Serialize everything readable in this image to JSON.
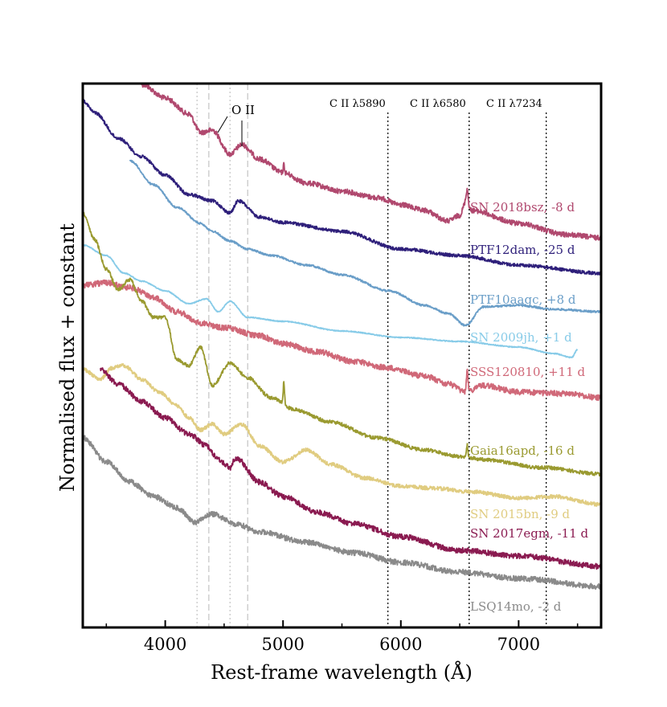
{
  "chart_data": {
    "type": "line",
    "xlabel": "Rest-frame wavelength (Å)",
    "ylabel": "Normalised flux + constant",
    "xlim": [
      3300,
      7700
    ],
    "xticks": [
      4000,
      5000,
      6000,
      7000
    ],
    "yticks_shown": false,
    "grid": false,
    "vertical_lines": [
      {
        "x": 4270,
        "style": "dotted",
        "color": "#c8c8c8"
      },
      {
        "x": 4370,
        "style": "dashed",
        "color": "#c8c8c8"
      },
      {
        "x": 4550,
        "style": "dotted",
        "color": "#c8c8c8"
      },
      {
        "x": 4700,
        "style": "dashed",
        "color": "#c8c8c8"
      },
      {
        "x": 5890,
        "style": "dotted",
        "color": "#000000",
        "label": "C II λ5890"
      },
      {
        "x": 6580,
        "style": "dotted",
        "color": "#000000",
        "label": "C II λ6580"
      },
      {
        "x": 7234,
        "style": "dotted",
        "color": "#000000",
        "label": "C II λ7234"
      }
    ],
    "annotations": [
      {
        "text": "O II",
        "x": [
          4450,
          4650
        ]
      }
    ],
    "series": [
      {
        "name": "SN 2018bsz, -8 d",
        "color": "#b0486e",
        "x_range": [
          3800,
          7700
        ],
        "anchors": [
          [
            3800,
            105
          ],
          [
            4000,
            122
          ],
          [
            4200,
            142
          ],
          [
            4300,
            165
          ],
          [
            4400,
            162
          ],
          [
            4550,
            192
          ],
          [
            4650,
            180
          ],
          [
            4800,
            198
          ],
          [
            5000,
            215
          ],
          [
            5200,
            228
          ],
          [
            5500,
            238
          ],
          [
            5800,
            246
          ],
          [
            6000,
            255
          ],
          [
            6200,
            262
          ],
          [
            6400,
            275
          ],
          [
            6500,
            268
          ],
          [
            6550,
            252
          ],
          [
            6600,
            262
          ],
          [
            7000,
            278
          ],
          [
            7400,
            292
          ],
          [
            7700,
            296
          ]
        ],
        "features": [
          [
            6563,
            -18,
            12
          ],
          [
            5007,
            -10,
            8
          ]
        ]
      },
      {
        "name": "PTF12dam, -25 d",
        "color": "#2e1f7a",
        "x_range": [
          3300,
          7700
        ],
        "anchors": [
          [
            3300,
            125
          ],
          [
            3400,
            140
          ],
          [
            3600,
            172
          ],
          [
            3800,
            195
          ],
          [
            4000,
            218
          ],
          [
            4200,
            242
          ],
          [
            4400,
            250
          ],
          [
            4550,
            265
          ],
          [
            4620,
            250
          ],
          [
            4800,
            270
          ],
          [
            5000,
            277
          ],
          [
            5500,
            288
          ],
          [
            6000,
            310
          ],
          [
            6500,
            318
          ],
          [
            7000,
            330
          ],
          [
            7700,
            340
          ]
        ],
        "features": []
      },
      {
        "name": "PTF10aagc, +8 d",
        "color": "#6a9ec8",
        "x_range": [
          3700,
          7700
        ],
        "anchors": [
          [
            3700,
            200
          ],
          [
            3900,
            230
          ],
          [
            4100,
            258
          ],
          [
            4300,
            278
          ],
          [
            4400,
            288
          ],
          [
            4550,
            300
          ],
          [
            4700,
            310
          ],
          [
            4900,
            318
          ],
          [
            5200,
            330
          ],
          [
            5500,
            342
          ],
          [
            5900,
            362
          ],
          [
            6200,
            380
          ],
          [
            6400,
            390
          ],
          [
            6550,
            405
          ],
          [
            6700,
            382
          ],
          [
            7000,
            380
          ],
          [
            7300,
            385
          ],
          [
            7700,
            388
          ]
        ],
        "features": []
      },
      {
        "name": "SN 2009jh, +1 d",
        "color": "#87cbe8",
        "x_range": [
          3300,
          7500
        ],
        "anchors": [
          [
            3300,
            305
          ],
          [
            3500,
            318
          ],
          [
            3650,
            340
          ],
          [
            3800,
            350
          ],
          [
            4000,
            362
          ],
          [
            4200,
            378
          ],
          [
            4350,
            372
          ],
          [
            4450,
            388
          ],
          [
            4550,
            375
          ],
          [
            4700,
            395
          ],
          [
            5000,
            400
          ],
          [
            5500,
            412
          ],
          [
            6000,
            420
          ],
          [
            6500,
            425
          ],
          [
            7000,
            432
          ],
          [
            7300,
            440
          ],
          [
            7450,
            445
          ],
          [
            7500,
            435
          ]
        ],
        "features": []
      },
      {
        "name": "SSS120810, +11 d",
        "color": "#d06878",
        "x_range": [
          3300,
          7700
        ],
        "anchors": [
          [
            3300,
            355
          ],
          [
            3500,
            352
          ],
          [
            3700,
            358
          ],
          [
            3900,
            370
          ],
          [
            4100,
            388
          ],
          [
            4300,
            402
          ],
          [
            4500,
            408
          ],
          [
            4800,
            418
          ],
          [
            5000,
            428
          ],
          [
            5300,
            438
          ],
          [
            5600,
            450
          ],
          [
            5900,
            458
          ],
          [
            6200,
            468
          ],
          [
            6400,
            478
          ],
          [
            6550,
            488
          ],
          [
            6700,
            480
          ],
          [
            7000,
            488
          ],
          [
            7400,
            490
          ],
          [
            7700,
            495
          ]
        ],
        "features": [
          [
            6563,
            -25,
            10
          ]
        ]
      },
      {
        "name": "Gaia16apd, -16 d",
        "color": "#9a9a30",
        "x_range": [
          3300,
          7700
        ],
        "anchors": [
          [
            3300,
            265
          ],
          [
            3400,
            298
          ],
          [
            3500,
            335
          ],
          [
            3600,
            360
          ],
          [
            3700,
            348
          ],
          [
            3800,
            375
          ],
          [
            3900,
            395
          ],
          [
            4000,
            395
          ],
          [
            4100,
            448
          ],
          [
            4200,
            455
          ],
          [
            4300,
            432
          ],
          [
            4400,
            480
          ],
          [
            4550,
            452
          ],
          [
            4700,
            470
          ],
          [
            4900,
            495
          ],
          [
            5100,
            510
          ],
          [
            5400,
            525
          ],
          [
            5800,
            545
          ],
          [
            6200,
            560
          ],
          [
            6500,
            568
          ],
          [
            6700,
            572
          ],
          [
            7200,
            582
          ],
          [
            7700,
            590
          ]
        ],
        "features": [
          [
            5007,
            -28,
            8
          ],
          [
            6563,
            -15,
            8
          ]
        ]
      },
      {
        "name": "SN 2015bn, -9 d",
        "color": "#e0cc80",
        "x_range": [
          3300,
          7700
        ],
        "anchors": [
          [
            3300,
            460
          ],
          [
            3450,
            472
          ],
          [
            3550,
            458
          ],
          [
            3650,
            455
          ],
          [
            3800,
            472
          ],
          [
            3950,
            488
          ],
          [
            4100,
            505
          ],
          [
            4200,
            520
          ],
          [
            4300,
            535
          ],
          [
            4400,
            528
          ],
          [
            4500,
            540
          ],
          [
            4650,
            528
          ],
          [
            4800,
            555
          ],
          [
            5000,
            575
          ],
          [
            5200,
            560
          ],
          [
            5400,
            578
          ],
          [
            5700,
            595
          ],
          [
            6000,
            605
          ],
          [
            6300,
            608
          ],
          [
            6600,
            612
          ],
          [
            7000,
            620
          ],
          [
            7300,
            618
          ],
          [
            7700,
            628
          ]
        ],
        "features": []
      },
      {
        "name": "SN 2017egm, -11 d",
        "color": "#8a1a50",
        "x_range": [
          3450,
          7700
        ],
        "anchors": [
          [
            3450,
            460
          ],
          [
            3600,
            478
          ],
          [
            3800,
            500
          ],
          [
            4000,
            520
          ],
          [
            4200,
            540
          ],
          [
            4350,
            555
          ],
          [
            4450,
            572
          ],
          [
            4550,
            582
          ],
          [
            4600,
            570
          ],
          [
            4800,
            600
          ],
          [
            5000,
            618
          ],
          [
            5300,
            638
          ],
          [
            5600,
            652
          ],
          [
            6000,
            668
          ],
          [
            6500,
            685
          ],
          [
            7000,
            692
          ],
          [
            7700,
            705
          ]
        ],
        "features": []
      },
      {
        "name": "LSQ14mo, -2 d",
        "color": "#8a8a8a",
        "x_range": [
          3300,
          7700
        ],
        "anchors": [
          [
            3300,
            545
          ],
          [
            3500,
            575
          ],
          [
            3700,
            600
          ],
          [
            3900,
            618
          ],
          [
            4100,
            632
          ],
          [
            4250,
            650
          ],
          [
            4400,
            640
          ],
          [
            4600,
            652
          ],
          [
            4800,
            662
          ],
          [
            5200,
            675
          ],
          [
            5600,
            688
          ],
          [
            6000,
            700
          ],
          [
            6500,
            712
          ],
          [
            7000,
            720
          ],
          [
            7700,
            730
          ]
        ],
        "features": []
      }
    ],
    "labels": [
      {
        "text": "SN 2018bsz, -8 d",
        "color": "#b0486e"
      },
      {
        "text": "PTF12dam, -25 d",
        "color": "#2e1f7a"
      },
      {
        "text": "PTF10aagc, +8 d",
        "color": "#6a9ec8"
      },
      {
        "text": "SN 2009jh, +1 d",
        "color": "#87cbe8"
      },
      {
        "text": "SSS120810, +11 d",
        "color": "#d06878"
      },
      {
        "text": "Gaia16apd, -16 d",
        "color": "#9a9a30"
      },
      {
        "text": "SN 2015bn, -9 d",
        "color": "#e0cc80"
      },
      {
        "text": "SN 2017egm, -11 d",
        "color": "#8a1a50"
      },
      {
        "text": "LSQ14mo, -2 d",
        "color": "#8a8a8a"
      }
    ]
  }
}
